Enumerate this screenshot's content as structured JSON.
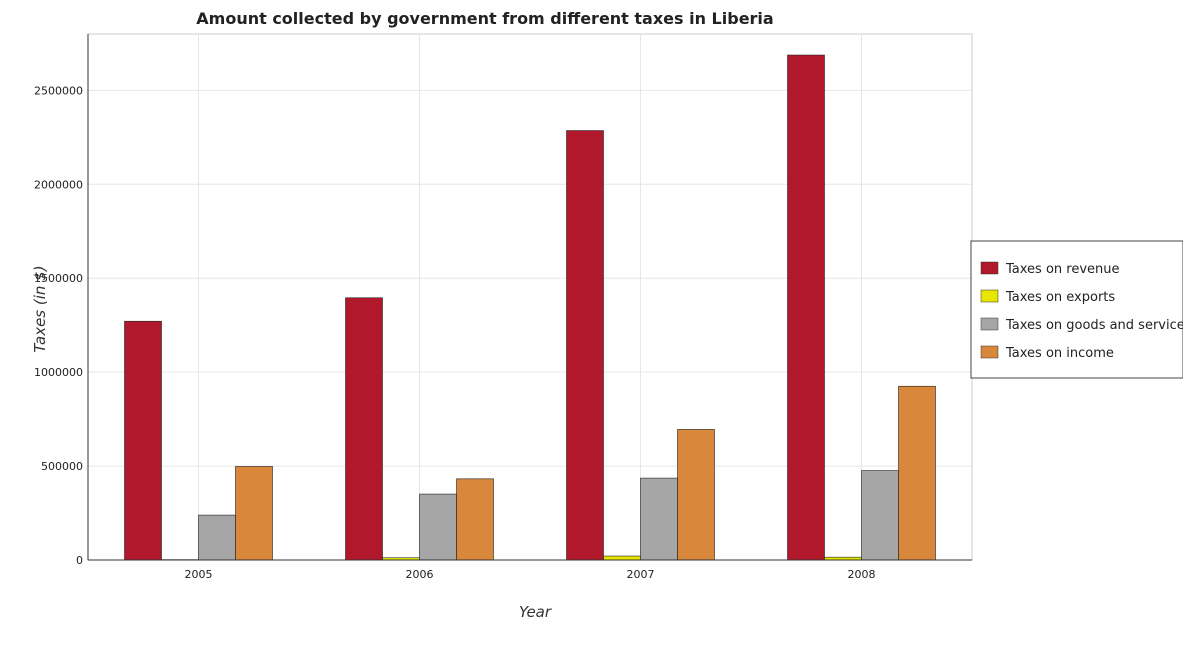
{
  "chart_data": {
    "type": "bar",
    "title": "Amount collected by government from different taxes in Liberia",
    "xlabel": "Year",
    "ylabel": "Taxes (in $)",
    "categories": [
      "2005",
      "2006",
      "2007",
      "2008"
    ],
    "ylim": [
      0,
      2800000
    ],
    "yticks": [
      0,
      500000,
      1000000,
      1500000,
      2000000,
      2500000
    ],
    "ytick_labels": [
      "0",
      "500000",
      "1000000",
      "1500000",
      "2000000",
      "2500000"
    ],
    "grid": true,
    "legend_position": "right",
    "series": [
      {
        "name": "Taxes on revenue",
        "color": "#b2182b",
        "values": [
          1271000,
          1396000,
          2286000,
          2688000
        ]
      },
      {
        "name": "Taxes on exports",
        "color": "#e6e600",
        "values": [
          2000,
          12000,
          21000,
          15000
        ]
      },
      {
        "name": "Taxes on goods and services",
        "color": "#a6a6a6",
        "values": [
          239000,
          351000,
          436000,
          476000
        ]
      },
      {
        "name": "Taxes on income",
        "color": "#d9883b",
        "values": [
          498000,
          432000,
          695000,
          925000
        ]
      }
    ]
  }
}
